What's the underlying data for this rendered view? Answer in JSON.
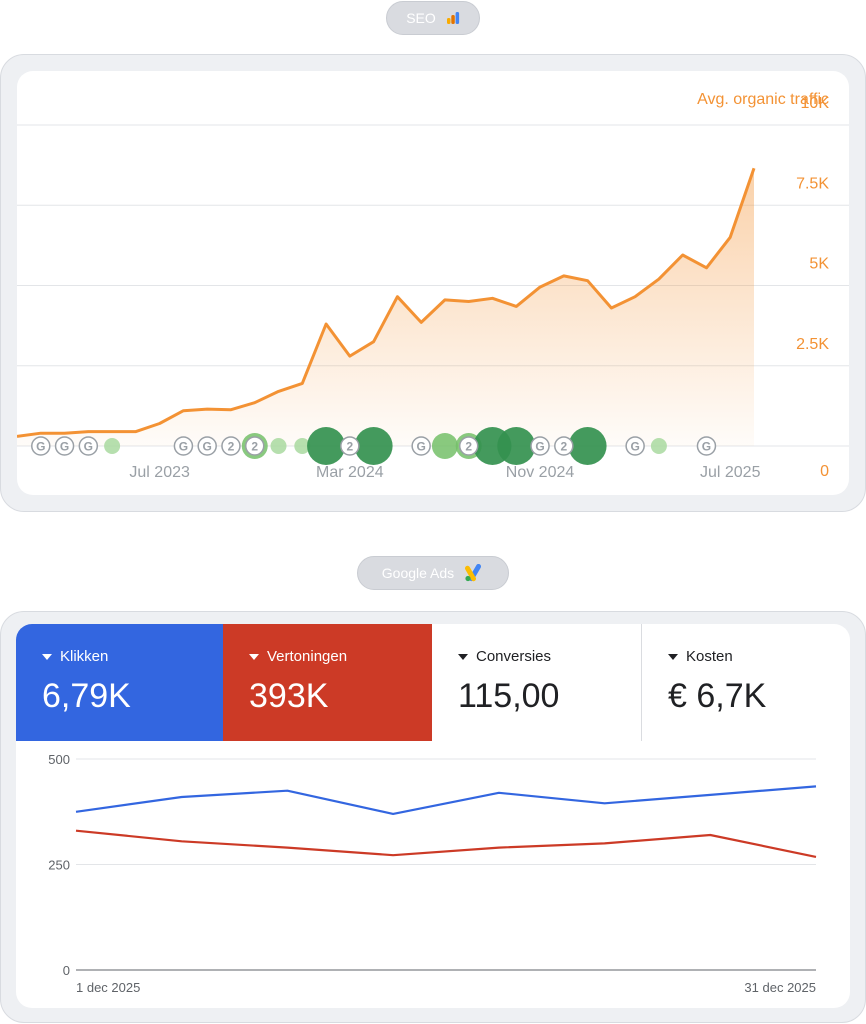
{
  "seo": {
    "pill_label": "SEO",
    "pill_icon": "analytics-icon",
    "chart_data": {
      "type": "area",
      "series_label": "Avg. organic traffic",
      "color": "#f39234",
      "y_ticks": [
        "10K",
        "7.5K",
        "5K",
        "2.5K",
        "0"
      ],
      "ylim": [
        0,
        10000
      ],
      "x_ticks": [
        "Jul 2023",
        "Mar 2024",
        "Nov 2024",
        "Jul 2025"
      ],
      "x_tick_index": [
        6,
        14,
        22,
        30
      ],
      "values": [
        300,
        400,
        400,
        450,
        450,
        450,
        700,
        1100,
        1150,
        1130,
        1350,
        1700,
        1950,
        3800,
        2800,
        3250,
        4650,
        3850,
        4550,
        4500,
        4600,
        4350,
        4950,
        5300,
        5150,
        4300,
        4650,
        5200,
        5950,
        5550,
        6500,
        8650
      ],
      "events": [
        {
          "i": 1,
          "kind": "google",
          "label": "G"
        },
        {
          "i": 2,
          "kind": "google",
          "label": "G"
        },
        {
          "i": 3,
          "kind": "google",
          "label": "G"
        },
        {
          "i": 4,
          "kind": "dot",
          "size": 1
        },
        {
          "i": 7,
          "kind": "google",
          "label": "G"
        },
        {
          "i": 8,
          "kind": "google",
          "label": "G"
        },
        {
          "i": 9,
          "kind": "count",
          "label": "2"
        },
        {
          "i": 10,
          "kind": "dot",
          "size": 2
        },
        {
          "i": 10,
          "kind": "count",
          "label": "2"
        },
        {
          "i": 11,
          "kind": "dot",
          "size": 1
        },
        {
          "i": 12,
          "kind": "dot",
          "size": 1
        },
        {
          "i": 13,
          "kind": "dot",
          "size": 4
        },
        {
          "i": 14,
          "kind": "count",
          "label": "2"
        },
        {
          "i": 15,
          "kind": "dot",
          "size": 4
        },
        {
          "i": 17,
          "kind": "google",
          "label": "G"
        },
        {
          "i": 18,
          "kind": "dot",
          "size": 2
        },
        {
          "i": 19,
          "kind": "dot",
          "size": 2
        },
        {
          "i": 19,
          "kind": "count",
          "label": "2"
        },
        {
          "i": 20,
          "kind": "dot",
          "size": 4
        },
        {
          "i": 21,
          "kind": "dot",
          "size": 4
        },
        {
          "i": 22,
          "kind": "google",
          "label": "G"
        },
        {
          "i": 23,
          "kind": "count",
          "label": "2"
        },
        {
          "i": 24,
          "kind": "dot",
          "size": 4
        },
        {
          "i": 26,
          "kind": "google",
          "label": "G"
        },
        {
          "i": 27,
          "kind": "dot",
          "size": 1
        },
        {
          "i": 29,
          "kind": "google",
          "label": "G"
        }
      ]
    }
  },
  "ads": {
    "pill_label": "Google Ads",
    "pill_icon": "google-ads-icon",
    "metrics": {
      "clicks": {
        "label": "Klikken",
        "value": "6,79K"
      },
      "views": {
        "label": "Vertoningen",
        "value": "393K"
      },
      "conversions": {
        "label": "Conversies",
        "value": "115,00"
      },
      "cost": {
        "label": "Kosten",
        "value": "€ 6,7K"
      }
    },
    "chart_data": {
      "type": "line",
      "ylim": [
        0,
        500
      ],
      "y_ticks": [
        "500",
        "250",
        "0"
      ],
      "x_labels": [
        "1 dec 2025",
        "31 dec 2025"
      ],
      "series": [
        {
          "color": "#3366e0",
          "values": [
            375,
            410,
            425,
            370,
            420,
            395,
            415,
            435
          ]
        },
        {
          "color": "#cc3a26",
          "values": [
            330,
            305,
            290,
            272,
            290,
            300,
            320,
            268
          ]
        }
      ]
    }
  }
}
